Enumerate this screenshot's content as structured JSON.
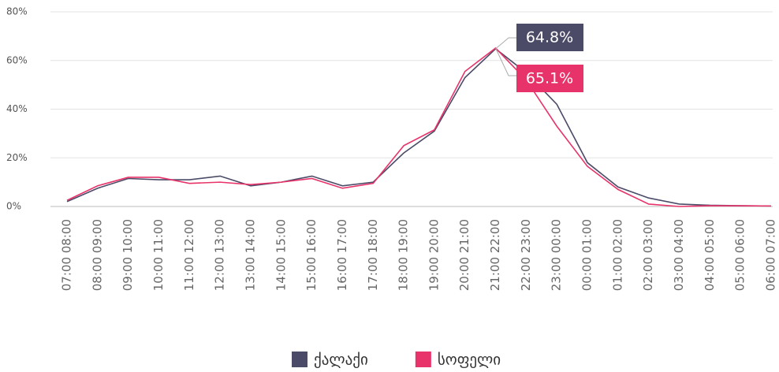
{
  "chart_data": {
    "type": "line",
    "categories": [
      "07:00 08:00",
      "08:00 09:00",
      "09:00 10:00",
      "10:00 11:00",
      "11:00 12:00",
      "12:00 13:00",
      "13:00 14:00",
      "14:00 15:00",
      "15:00 16:00",
      "16:00 17:00",
      "17:00 18:00",
      "18:00 19:00",
      "19:00 20:00",
      "20:00 21:00",
      "21:00 22:00",
      "22:00 23:00",
      "23:00 00:00",
      "00:00 01:00",
      "01:00 02:00",
      "02:00 03:00",
      "03:00 04:00",
      "04:00 05:00",
      "05:00 06:00",
      "06:00 07:00"
    ],
    "series": [
      {
        "name": "ქალაქი",
        "color": "#4b4b68",
        "values": [
          2,
          7.5,
          11.5,
          11,
          11,
          12.5,
          8.5,
          10,
          12.5,
          8.5,
          10,
          22,
          31,
          53,
          64.8,
          55,
          42,
          18,
          8,
          3.5,
          1,
          0.5,
          0.3,
          0.2
        ],
        "value_labels": [
          null,
          null,
          null,
          null,
          null,
          null,
          null,
          null,
          null,
          null,
          null,
          null,
          null,
          null,
          "64.8%",
          null,
          null,
          null,
          null,
          null,
          null,
          null,
          null,
          null
        ]
      },
      {
        "name": "სოფელი",
        "color": "#e8336a",
        "values": [
          2.5,
          8.5,
          12,
          12,
          9.5,
          10,
          9,
          10,
          11.5,
          7.5,
          9.5,
          25,
          31.5,
          55.5,
          65.1,
          52,
          33,
          16.5,
          7,
          1,
          0,
          0.3,
          0.3,
          0.2
        ],
        "value_labels": [
          null,
          null,
          null,
          null,
          null,
          null,
          null,
          null,
          null,
          null,
          null,
          null,
          null,
          null,
          "65.1%",
          null,
          null,
          null,
          null,
          null,
          null,
          null,
          null,
          null
        ]
      }
    ],
    "ylim": [
      0,
      80
    ],
    "yticks": [
      {
        "value": 0,
        "label": "0%"
      },
      {
        "value": 20,
        "label": "20%"
      },
      {
        "value": 40,
        "label": "40%"
      },
      {
        "value": 60,
        "label": "60%"
      },
      {
        "value": 80,
        "label": "80%"
      }
    ],
    "grid": true
  }
}
